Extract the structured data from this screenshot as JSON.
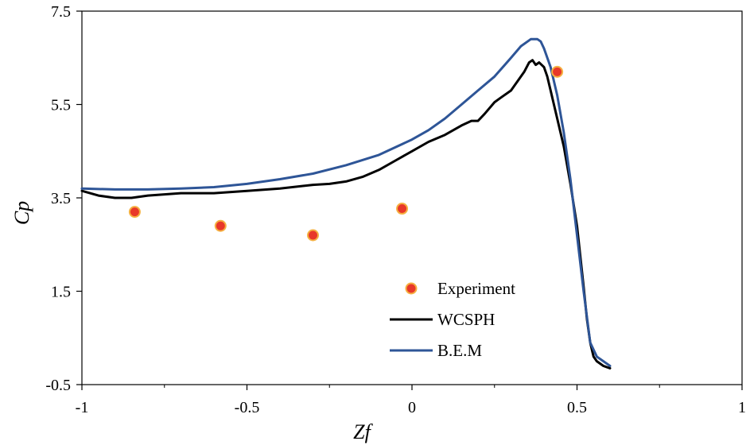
{
  "chart_data": {
    "type": "line",
    "title": "",
    "xlabel": "Zf",
    "ylabel": "Cp",
    "xlim": [
      -1,
      1
    ],
    "ylim": [
      -0.5,
      7.5
    ],
    "xticks": [
      "-1",
      "-0.5",
      "0",
      "0.5",
      "1"
    ],
    "yticks": [
      "-0.5",
      "1.5",
      "3.5",
      "5.5",
      "7.5"
    ],
    "legend_position": "center-right",
    "grid": false,
    "series": [
      {
        "name": "Experiment",
        "kind": "scatter",
        "color": "#e8382a",
        "edge_color": "#f5b041",
        "x": [
          -0.84,
          -0.58,
          -0.3,
          -0.03,
          0.44
        ],
        "y": [
          3.2,
          2.9,
          2.7,
          3.27,
          6.2
        ]
      },
      {
        "name": "WCSPH",
        "kind": "line",
        "color": "#000000",
        "x": [
          -1.0,
          -0.95,
          -0.9,
          -0.85,
          -0.8,
          -0.7,
          -0.6,
          -0.5,
          -0.4,
          -0.3,
          -0.25,
          -0.2,
          -0.15,
          -0.1,
          -0.05,
          0.0,
          0.05,
          0.1,
          0.15,
          0.18,
          0.2,
          0.22,
          0.25,
          0.27,
          0.3,
          0.32,
          0.34,
          0.355,
          0.365,
          0.375,
          0.385,
          0.4,
          0.41,
          0.42,
          0.44,
          0.46,
          0.48,
          0.5,
          0.52,
          0.53,
          0.54,
          0.55,
          0.56,
          0.58,
          0.6
        ],
        "y": [
          3.65,
          3.55,
          3.5,
          3.5,
          3.55,
          3.6,
          3.6,
          3.65,
          3.7,
          3.78,
          3.8,
          3.85,
          3.95,
          4.1,
          4.3,
          4.5,
          4.7,
          4.85,
          5.05,
          5.15,
          5.15,
          5.3,
          5.55,
          5.65,
          5.8,
          6.0,
          6.2,
          6.4,
          6.45,
          6.35,
          6.4,
          6.3,
          6.1,
          5.8,
          5.2,
          4.6,
          3.8,
          2.9,
          1.6,
          0.9,
          0.4,
          0.1,
          0.0,
          -0.1,
          -0.15
        ]
      },
      {
        "name": "B.E.M",
        "kind": "line",
        "color": "#2e5597",
        "x": [
          -1.0,
          -0.9,
          -0.8,
          -0.7,
          -0.6,
          -0.5,
          -0.4,
          -0.3,
          -0.2,
          -0.1,
          0.0,
          0.05,
          0.1,
          0.15,
          0.2,
          0.25,
          0.3,
          0.33,
          0.36,
          0.38,
          0.39,
          0.4,
          0.42,
          0.44,
          0.46,
          0.48,
          0.5,
          0.52,
          0.54,
          0.56,
          0.58,
          0.6
        ],
        "y": [
          3.7,
          3.68,
          3.68,
          3.7,
          3.73,
          3.8,
          3.9,
          4.02,
          4.2,
          4.42,
          4.75,
          4.95,
          5.2,
          5.5,
          5.8,
          6.1,
          6.5,
          6.75,
          6.9,
          6.9,
          6.85,
          6.7,
          6.3,
          5.7,
          4.9,
          3.9,
          2.7,
          1.5,
          0.4,
          0.1,
          0.0,
          -0.1
        ]
      }
    ]
  }
}
